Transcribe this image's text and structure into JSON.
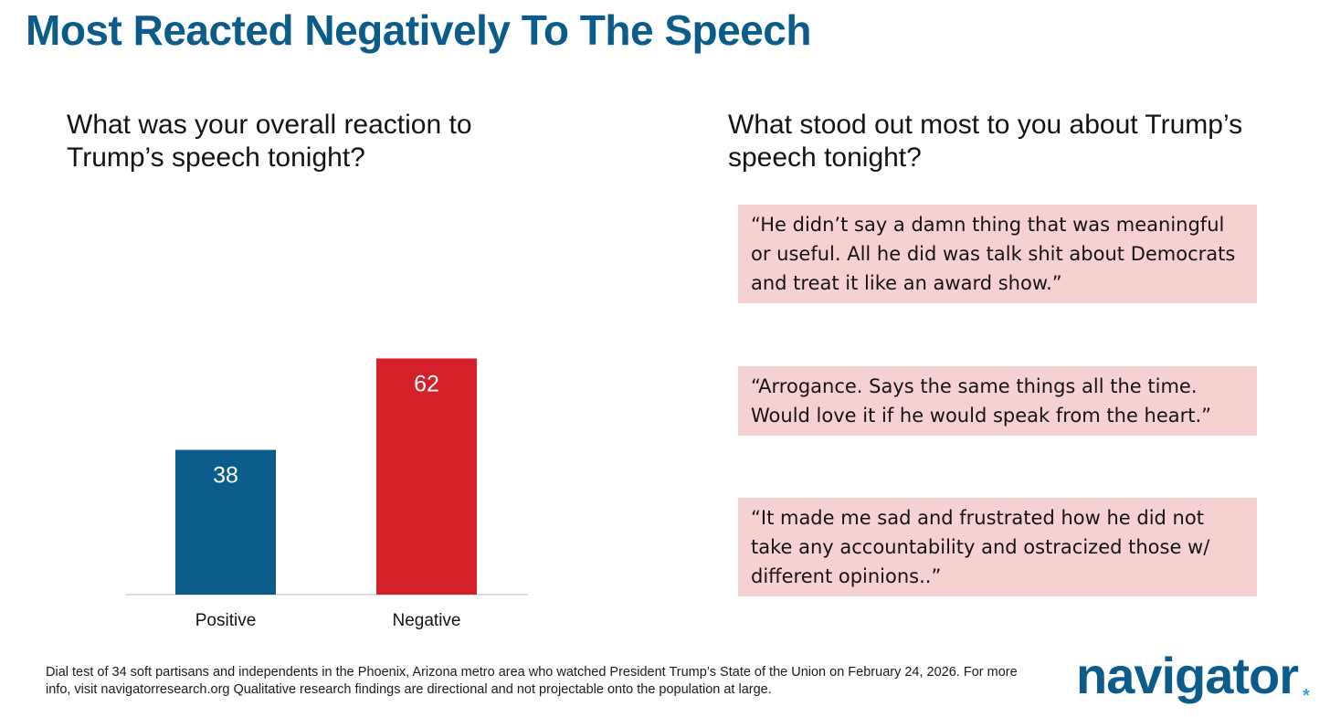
{
  "title": "Most Reacted Negatively To The Speech",
  "left_question": "What was your overall reaction to Trump’s speech tonight?",
  "right_question": "What stood out most to you about Trump’s speech tonight?",
  "quotes": [
    "“He didn’t say a damn thing that was meaningful or useful. All he did was talk shit about Democrats and treat it like an award show.”",
    "“Arrogance. Says the same things all the time. Would love it if he would speak from the heart.”",
    "“It made me sad and frustrated how he did not take any accountability and ostracized those w/  different opinions..”"
  ],
  "footnote": "Dial test of 34 soft partisans and independents in the Phoenix, Arizona metro area who watched President Trump’s State of the Union on February 24, 2026.  For more info, visit navigatorresearch.org  Qualitative research findings are directional and not projectable onto the population at large.",
  "logo": {
    "text": "navigator",
    "mark": "*"
  },
  "colors": {
    "title": "#0b5c8a",
    "positive": "#0b5c8a",
    "negative": "#d42028",
    "quote_bg": "#f6d1d1"
  },
  "chart_data": {
    "type": "bar",
    "title": "What was your overall reaction to Trump’s speech tonight?",
    "categories": [
      "Positive",
      "Negative"
    ],
    "values": [
      38,
      62
    ],
    "data_labels": [
      "38",
      "62"
    ],
    "bar_colors": [
      "#0b5c8a",
      "#d42028"
    ],
    "xlabel": "",
    "ylabel": "",
    "ylim": [
      0,
      100
    ],
    "grid": false,
    "legend": "none"
  }
}
